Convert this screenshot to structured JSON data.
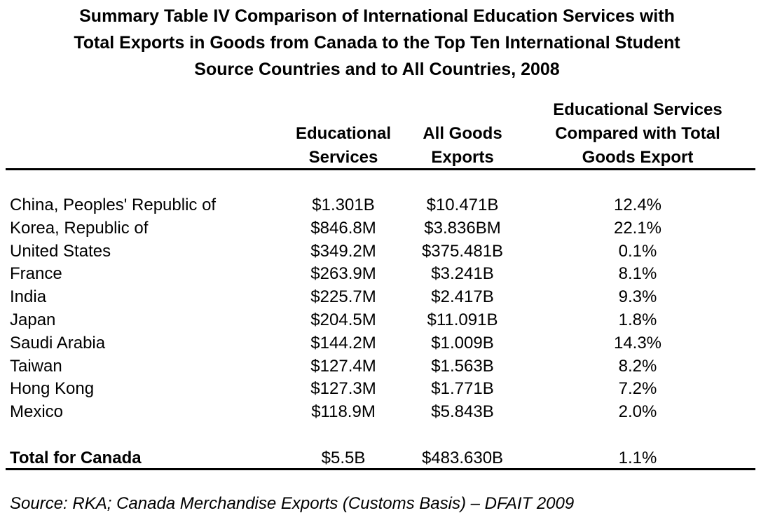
{
  "title": {
    "line1": "Summary Table IV Comparison of International Education Services with",
    "line2": "Total Exports in Goods from Canada to the Top Ten International Student",
    "line3": "Source Countries and to All Countries, 2008"
  },
  "headers": {
    "educational_services": [
      "Educational",
      "Services"
    ],
    "all_goods_exports": [
      "All Goods",
      "Exports"
    ],
    "comparison": [
      "Educational Services",
      "Compared with Total",
      "Goods Export"
    ]
  },
  "rows": [
    {
      "country": "China, Peoples' Republic of",
      "edu": "$1.301B",
      "goods": "$10.471B",
      "pct": "12.4%"
    },
    {
      "country": "Korea, Republic of",
      "edu": "$846.8M",
      "goods": "$3.836BM",
      "pct": "22.1%"
    },
    {
      "country": "United States",
      "edu": "$349.2M",
      "goods": "$375.481B",
      "pct": "0.1%"
    },
    {
      "country": "France",
      "edu": "$263.9M",
      "goods": "$3.241B",
      "pct": "8.1%"
    },
    {
      "country": "India",
      "edu": "$225.7M",
      "goods": "$2.417B",
      "pct": "9.3%"
    },
    {
      "country": "Japan",
      "edu": "$204.5M",
      "goods": "$11.091B",
      "pct": "1.8%"
    },
    {
      "country": "Saudi Arabia",
      "edu": "$144.2M",
      "goods": "$1.009B",
      "pct": "14.3%"
    },
    {
      "country": "Taiwan",
      "edu": "$127.4M",
      "goods": "$1.563B",
      "pct": "8.2%"
    },
    {
      "country": "Hong Kong",
      "edu": "$127.3M",
      "goods": "$1.771B",
      "pct": "7.2%"
    },
    {
      "country": "Mexico",
      "edu": "$118.9M",
      "goods": "$5.843B",
      "pct": "2.0%"
    }
  ],
  "total": {
    "country": "Total for Canada",
    "edu": "$5.5B",
    "goods": "$483.630B",
    "pct": "1.1%"
  },
  "source": "Source: RKA; Canada Merchandise Exports (Customs Basis) – DFAIT 2009"
}
